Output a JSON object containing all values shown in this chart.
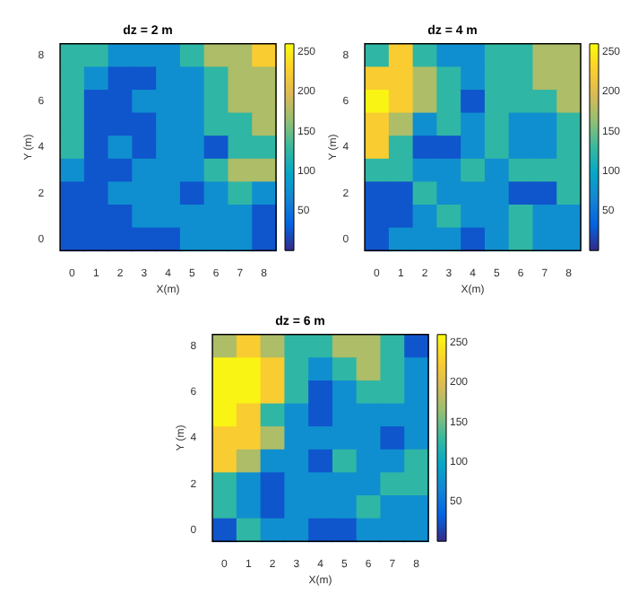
{
  "chart_data": [
    {
      "type": "heatmap",
      "title": "dz = 2 m",
      "xlabel": "X(m)",
      "ylabel": "Y (m)",
      "categories": [
        "0",
        "1",
        "2",
        "3",
        "4",
        "5",
        "6",
        "7",
        "8"
      ],
      "y_categories": [
        "8",
        null,
        "6",
        null,
        "4",
        null,
        "2",
        null,
        "0"
      ],
      "clim": [
        0,
        260
      ],
      "cticks": [
        50,
        100,
        150,
        200,
        250
      ],
      "cells": [
        [
          125,
          125,
          75,
          75,
          75,
          125,
          175,
          175,
          225
        ],
        [
          125,
          75,
          25,
          25,
          75,
          75,
          125,
          175,
          175
        ],
        [
          125,
          25,
          25,
          75,
          75,
          75,
          125,
          175,
          175
        ],
        [
          125,
          25,
          25,
          25,
          75,
          75,
          125,
          125,
          175
        ],
        [
          125,
          25,
          75,
          25,
          75,
          75,
          25,
          125,
          125
        ],
        [
          75,
          25,
          25,
          75,
          75,
          75,
          125,
          175,
          175
        ],
        [
          25,
          25,
          75,
          75,
          75,
          25,
          75,
          125,
          75
        ],
        [
          25,
          25,
          25,
          75,
          75,
          75,
          75,
          75,
          25
        ],
        [
          25,
          25,
          25,
          25,
          25,
          75,
          75,
          75,
          25
        ]
      ]
    },
    {
      "type": "heatmap",
      "title": "dz = 4 m",
      "xlabel": "X(m)",
      "ylabel": "Y (m)",
      "categories": [
        "0",
        "1",
        "2",
        "3",
        "4",
        "5",
        "6",
        "7",
        "8"
      ],
      "y_categories": [
        "8",
        null,
        "6",
        null,
        "4",
        null,
        "2",
        null,
        "0"
      ],
      "clim": [
        0,
        260
      ],
      "cticks": [
        50,
        100,
        150,
        200,
        250
      ],
      "cells": [
        [
          125,
          225,
          125,
          75,
          75,
          125,
          125,
          175,
          175
        ],
        [
          225,
          225,
          175,
          125,
          75,
          125,
          125,
          175,
          175
        ],
        [
          255,
          225,
          175,
          125,
          25,
          125,
          125,
          125,
          175
        ],
        [
          225,
          175,
          75,
          125,
          75,
          125,
          75,
          75,
          125
        ],
        [
          225,
          125,
          25,
          25,
          75,
          125,
          75,
          75,
          125
        ],
        [
          125,
          125,
          75,
          75,
          125,
          75,
          125,
          125,
          125
        ],
        [
          25,
          25,
          125,
          75,
          75,
          75,
          25,
          25,
          125
        ],
        [
          25,
          25,
          75,
          125,
          75,
          75,
          125,
          75,
          75
        ],
        [
          25,
          75,
          75,
          75,
          25,
          75,
          125,
          75,
          75
        ]
      ]
    },
    {
      "type": "heatmap",
      "title": "dz = 6 m",
      "xlabel": "X(m)",
      "ylabel": "Y (m)",
      "categories": [
        "0",
        "1",
        "2",
        "3",
        "4",
        "5",
        "6",
        "7",
        "8"
      ],
      "y_categories": [
        "8",
        null,
        "6",
        null,
        "4",
        null,
        "2",
        null,
        "0"
      ],
      "clim": [
        0,
        260
      ],
      "cticks": [
        50,
        100,
        150,
        200,
        250
      ],
      "cells": [
        [
          175,
          225,
          175,
          125,
          125,
          175,
          175,
          125,
          25
        ],
        [
          255,
          255,
          225,
          125,
          75,
          125,
          175,
          125,
          75
        ],
        [
          255,
          255,
          225,
          125,
          25,
          75,
          125,
          125,
          75
        ],
        [
          255,
          225,
          125,
          75,
          25,
          75,
          75,
          75,
          75
        ],
        [
          225,
          225,
          175,
          75,
          75,
          75,
          75,
          25,
          75
        ],
        [
          225,
          175,
          75,
          75,
          25,
          125,
          75,
          75,
          125
        ],
        [
          125,
          75,
          25,
          75,
          75,
          75,
          75,
          125,
          125
        ],
        [
          125,
          75,
          25,
          75,
          75,
          75,
          125,
          75,
          75
        ],
        [
          25,
          125,
          75,
          75,
          25,
          25,
          75,
          75,
          75
        ]
      ]
    }
  ]
}
